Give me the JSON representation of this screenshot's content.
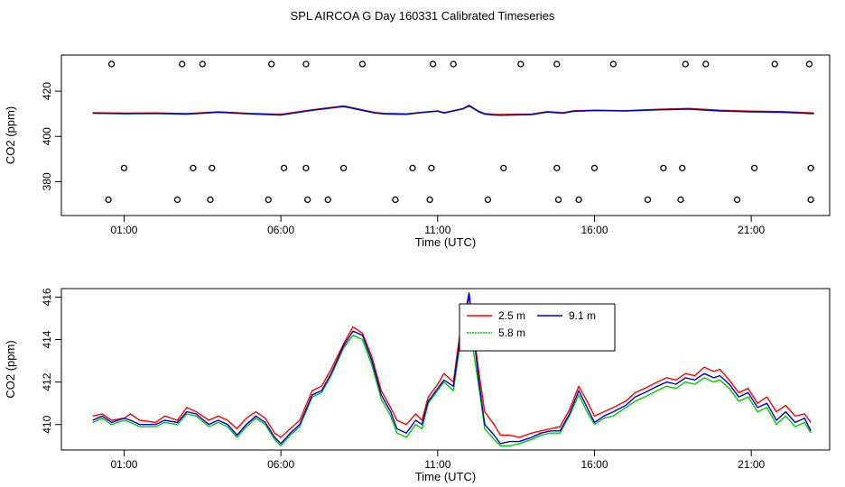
{
  "title": "SPL AIRCOA G  Day 160331  Calibrated Timeseries",
  "chart_data": [
    {
      "type": "line",
      "panel": "top",
      "xlabel": "Time (UTC)",
      "ylabel": "CO2 (ppm)",
      "xlim": [
        23.0,
        47.5
      ],
      "ylim": [
        365,
        436
      ],
      "xticks": [
        25,
        30,
        35,
        40,
        45
      ],
      "xtick_labels": [
        "01:00",
        "06:00",
        "11:00",
        "16:00",
        "21:00"
      ],
      "yticks": [
        380,
        400,
        420
      ],
      "ytick_labels": [
        "380",
        "400",
        "420"
      ],
      "x": [
        24,
        25,
        26,
        27,
        28,
        29,
        30,
        31,
        32,
        33,
        33.3,
        34,
        34.5,
        35,
        35.2,
        35.5,
        35.8,
        36,
        36.3,
        36.5,
        36.8,
        37,
        38,
        38.5,
        39,
        39.3,
        40,
        41,
        42,
        43,
        44,
        45,
        46,
        47
      ],
      "series": [
        {
          "name": "2.5 m",
          "color": "#ff0000",
          "values": [
            410.5,
            410.3,
            410.4,
            410.1,
            410.9,
            410.2,
            409.8,
            411.8,
            413.5,
            410.6,
            410.2,
            410.0,
            410.7,
            411.3,
            410.5,
            411.4,
            412.3,
            413.8,
            411.2,
            410.1,
            409.8,
            409.7,
            409.9,
            411.0,
            410.5,
            411.3,
            411.6,
            411.4,
            412.0,
            412.4,
            411.6,
            411.2,
            411.0,
            410.4
          ]
        },
        {
          "name": "5.8 m",
          "color": "#00cc00",
          "values": [
            410.2,
            410.0,
            410.1,
            409.8,
            410.6,
            409.9,
            409.4,
            411.5,
            413.2,
            410.3,
            409.9,
            409.7,
            410.5,
            411.1,
            410.3,
            411.2,
            412.1,
            413.4,
            410.9,
            409.8,
            409.4,
            409.3,
            409.6,
            410.7,
            410.2,
            411.0,
            411.4,
            411.2,
            411.7,
            412.0,
            411.2,
            410.8,
            410.6,
            410.0
          ]
        },
        {
          "name": "9.1 m",
          "color": "#0000cc",
          "values": [
            410.3,
            410.1,
            410.2,
            409.9,
            410.7,
            410.0,
            409.5,
            411.6,
            413.3,
            410.4,
            410.0,
            409.8,
            410.6,
            411.2,
            410.4,
            411.3,
            412.2,
            413.6,
            411.0,
            409.9,
            409.5,
            409.4,
            409.7,
            410.8,
            410.3,
            411.1,
            411.5,
            411.3,
            411.8,
            412.1,
            411.3,
            410.9,
            410.7,
            410.1
          ]
        }
      ],
      "scatter_rows": [
        {
          "y": 432,
          "x": [
            24.6,
            26.85,
            27.5,
            29.7,
            30.8,
            32.6,
            34.85,
            35.5,
            37.65,
            38.8,
            40.6,
            42.9,
            43.55,
            45.75,
            46.85
          ]
        },
        {
          "y": 386,
          "x": [
            25.0,
            27.2,
            27.8,
            30.1,
            30.8,
            32.0,
            34.2,
            34.8,
            37.1,
            38.8,
            40.0,
            42.2,
            42.8,
            45.1,
            46.9
          ]
        },
        {
          "y": 372,
          "x": [
            24.5,
            26.7,
            27.75,
            29.6,
            30.85,
            31.5,
            33.65,
            34.75,
            36.6,
            38.85,
            39.5,
            41.7,
            42.75,
            44.55,
            46.9
          ]
        }
      ]
    },
    {
      "type": "line",
      "panel": "bottom",
      "xlabel": "Time (UTC)",
      "ylabel": "CO2 (ppm)",
      "xlim": [
        23.0,
        47.5
      ],
      "ylim": [
        408.8,
        416.4
      ],
      "xticks": [
        25,
        30,
        35,
        40,
        45
      ],
      "xtick_labels": [
        "01:00",
        "06:00",
        "11:00",
        "16:00",
        "21:00"
      ],
      "yticks": [
        410,
        412,
        414,
        416
      ],
      "ytick_labels": [
        "410",
        "412",
        "414",
        "416"
      ],
      "legend": {
        "position": "top-center",
        "entries": [
          "2.5 m",
          "5.8 m",
          "9.1 m"
        ]
      },
      "x": [
        24,
        24.3,
        24.6,
        25,
        25.2,
        25.5,
        26,
        26.3,
        26.7,
        27,
        27.3,
        27.7,
        28,
        28.3,
        28.6,
        28.9,
        29.2,
        29.5,
        29.8,
        30,
        30.3,
        30.6,
        31,
        31.3,
        31.6,
        32,
        32.3,
        32.6,
        32.9,
        33.2,
        33.5,
        33.7,
        34,
        34.3,
        34.5,
        34.7,
        35,
        35.2,
        35.5,
        35.7,
        36,
        36.3,
        36.5,
        36.8,
        37,
        37.3,
        37.6,
        38,
        38.3,
        38.6,
        38.9,
        39.2,
        39.5,
        39.8,
        40,
        40.3,
        40.6,
        41,
        41.3,
        41.6,
        42,
        42.3,
        42.6,
        42.9,
        43.2,
        43.5,
        43.8,
        44,
        44.3,
        44.6,
        44.9,
        45.2,
        45.5,
        45.8,
        46.1,
        46.4,
        46.7,
        46.9
      ],
      "series": [
        {
          "name": "2.5 m",
          "color": "#ff0000",
          "values": [
            410.4,
            410.5,
            410.2,
            410.3,
            410.5,
            410.2,
            410.1,
            410.4,
            410.2,
            410.8,
            410.6,
            410.2,
            410.4,
            410.2,
            409.8,
            410.3,
            410.6,
            410.3,
            409.6,
            409.4,
            409.8,
            410.2,
            411.6,
            411.8,
            412.6,
            413.8,
            414.6,
            414.3,
            413.2,
            411.6,
            410.8,
            410.2,
            410.0,
            410.5,
            410.2,
            411.3,
            411.9,
            412.4,
            412.0,
            414.2,
            416.0,
            412.6,
            410.6,
            410.0,
            409.5,
            409.5,
            409.4,
            409.6,
            409.7,
            409.8,
            409.9,
            410.7,
            411.8,
            411.0,
            410.4,
            410.6,
            410.8,
            411.1,
            411.5,
            411.7,
            412.0,
            412.2,
            412.1,
            412.4,
            412.3,
            412.7,
            412.5,
            412.6,
            412.1,
            411.5,
            411.7,
            411.0,
            411.3,
            410.6,
            410.9,
            410.4,
            410.5,
            410.1
          ]
        },
        {
          "name": "5.8 m",
          "color": "#00cc00",
          "values": [
            410.1,
            410.3,
            410.0,
            410.2,
            410.1,
            409.9,
            409.9,
            410.1,
            410.0,
            410.5,
            410.4,
            409.9,
            410.1,
            409.9,
            409.4,
            409.9,
            410.3,
            410.0,
            409.3,
            409.0,
            409.5,
            409.9,
            411.3,
            411.5,
            412.3,
            413.6,
            414.2,
            414.0,
            412.8,
            411.2,
            410.4,
            409.6,
            409.4,
            410.0,
            409.8,
            411.0,
            411.6,
            412.0,
            411.6,
            413.6,
            414.8,
            411.9,
            409.8,
            409.3,
            409.0,
            409.0,
            409.1,
            409.3,
            409.5,
            409.6,
            409.6,
            410.4,
            411.4,
            410.5,
            410.0,
            410.3,
            410.4,
            410.8,
            411.1,
            411.3,
            411.6,
            411.8,
            411.7,
            412.0,
            411.9,
            412.2,
            412.0,
            412.1,
            411.7,
            411.1,
            411.3,
            410.6,
            410.8,
            410.0,
            410.4,
            409.9,
            410.1,
            409.6
          ]
        },
        {
          "name": "9.1 m",
          "color": "#0000cc",
          "values": [
            410.2,
            410.4,
            410.1,
            410.3,
            410.2,
            410.0,
            410.0,
            410.2,
            410.1,
            410.6,
            410.5,
            410.0,
            410.2,
            410.0,
            409.5,
            410.0,
            410.4,
            410.1,
            409.4,
            409.1,
            409.6,
            410.0,
            411.4,
            411.6,
            412.4,
            413.7,
            414.4,
            414.2,
            413.0,
            411.4,
            410.6,
            409.8,
            409.6,
            410.2,
            410.0,
            411.1,
            411.7,
            412.1,
            411.8,
            413.9,
            416.2,
            412.2,
            410.0,
            409.5,
            409.1,
            409.2,
            409.2,
            409.4,
            409.6,
            409.7,
            409.7,
            410.5,
            411.6,
            410.7,
            410.1,
            410.4,
            410.6,
            410.9,
            411.3,
            411.5,
            411.8,
            412.0,
            411.9,
            412.2,
            412.1,
            412.4,
            412.2,
            412.3,
            411.9,
            411.3,
            411.5,
            410.8,
            411.0,
            410.2,
            410.6,
            410.1,
            410.3,
            409.7
          ]
        }
      ]
    }
  ]
}
